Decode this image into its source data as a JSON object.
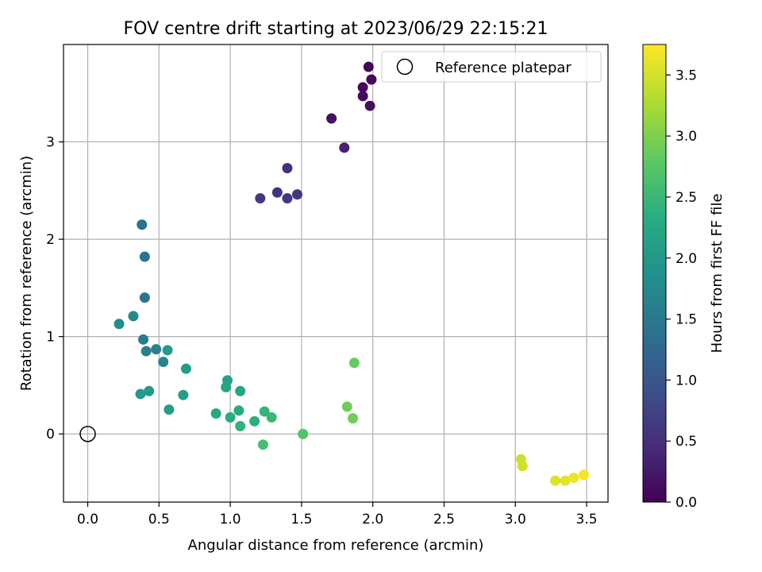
{
  "chart_data": {
    "type": "scatter",
    "title": "FOV centre drift starting at 2023/06/29 22:15:21",
    "xlabel": "Angular distance from reference (arcmin)",
    "ylabel": "Rotation from reference (arcmin)",
    "xlim": [
      -0.17,
      3.65
    ],
    "ylim": [
      -0.7,
      4.0
    ],
    "x_ticks": [
      "0.0",
      "0.5",
      "1.0",
      "1.5",
      "2.0",
      "2.5",
      "3.0",
      "3.5"
    ],
    "x_tick_values": [
      0.0,
      0.5,
      1.0,
      1.5,
      2.0,
      2.5,
      3.0,
      3.5
    ],
    "y_ticks": [
      "0",
      "1",
      "2",
      "3"
    ],
    "y_tick_values": [
      0,
      1,
      2,
      3
    ],
    "grid": true,
    "legend_position": "top-right",
    "legend": {
      "label": "Reference platepar"
    },
    "reference_point": {
      "x": 0.0,
      "y": 0.0
    },
    "colorbar": {
      "label": "Hours from first FF file",
      "range": [
        0.0,
        3.75
      ],
      "ticks": [
        "0.0",
        "0.5",
        "1.0",
        "1.5",
        "2.0",
        "2.5",
        "3.0",
        "3.5"
      ],
      "tick_values": [
        0.0,
        0.5,
        1.0,
        1.5,
        2.0,
        2.5,
        3.0,
        3.5
      ],
      "colormap": "viridis"
    },
    "points": [
      {
        "x": 1.97,
        "y": 3.77,
        "c": 0.05
      },
      {
        "x": 1.93,
        "y": 3.56,
        "c": 0.08
      },
      {
        "x": 1.99,
        "y": 3.64,
        "c": 0.1
      },
      {
        "x": 1.93,
        "y": 3.47,
        "c": 0.12
      },
      {
        "x": 1.98,
        "y": 3.37,
        "c": 0.15
      },
      {
        "x": 1.71,
        "y": 3.24,
        "c": 0.18
      },
      {
        "x": 1.8,
        "y": 2.94,
        "c": 0.35
      },
      {
        "x": 1.4,
        "y": 2.73,
        "c": 0.5
      },
      {
        "x": 1.33,
        "y": 2.48,
        "c": 0.55
      },
      {
        "x": 1.47,
        "y": 2.46,
        "c": 0.58
      },
      {
        "x": 1.4,
        "y": 2.42,
        "c": 0.6
      },
      {
        "x": 1.21,
        "y": 2.42,
        "c": 0.62
      },
      {
        "x": 0.38,
        "y": 2.15,
        "c": 1.35
      },
      {
        "x": 0.4,
        "y": 1.82,
        "c": 1.4
      },
      {
        "x": 0.4,
        "y": 1.4,
        "c": 1.45
      },
      {
        "x": 0.32,
        "y": 1.21,
        "c": 1.75
      },
      {
        "x": 0.22,
        "y": 1.13,
        "c": 1.8
      },
      {
        "x": 0.39,
        "y": 0.97,
        "c": 1.55
      },
      {
        "x": 0.41,
        "y": 0.85,
        "c": 1.6
      },
      {
        "x": 0.48,
        "y": 0.87,
        "c": 1.65
      },
      {
        "x": 0.56,
        "y": 0.86,
        "c": 2.05
      },
      {
        "x": 0.53,
        "y": 0.74,
        "c": 1.7
      },
      {
        "x": 0.69,
        "y": 0.67,
        "c": 2.05
      },
      {
        "x": 0.37,
        "y": 0.41,
        "c": 2.0
      },
      {
        "x": 0.43,
        "y": 0.44,
        "c": 2.02
      },
      {
        "x": 0.67,
        "y": 0.4,
        "c": 2.1
      },
      {
        "x": 0.57,
        "y": 0.25,
        "c": 2.1
      },
      {
        "x": 0.98,
        "y": 0.55,
        "c": 2.15
      },
      {
        "x": 0.97,
        "y": 0.48,
        "c": 2.18
      },
      {
        "x": 1.07,
        "y": 0.44,
        "c": 2.2
      },
      {
        "x": 0.9,
        "y": 0.21,
        "c": 2.25
      },
      {
        "x": 1.06,
        "y": 0.24,
        "c": 2.28
      },
      {
        "x": 1.0,
        "y": 0.17,
        "c": 2.3
      },
      {
        "x": 1.07,
        "y": 0.08,
        "c": 2.42
      },
      {
        "x": 1.17,
        "y": 0.13,
        "c": 2.38
      },
      {
        "x": 1.24,
        "y": 0.23,
        "c": 2.45
      },
      {
        "x": 1.29,
        "y": 0.17,
        "c": 2.5
      },
      {
        "x": 1.23,
        "y": -0.11,
        "c": 2.6
      },
      {
        "x": 1.51,
        "y": 0.0,
        "c": 2.7
      },
      {
        "x": 1.87,
        "y": 0.73,
        "c": 2.85
      },
      {
        "x": 1.82,
        "y": 0.28,
        "c": 2.9
      },
      {
        "x": 1.86,
        "y": 0.16,
        "c": 2.92
      },
      {
        "x": 3.04,
        "y": -0.26,
        "c": 3.45
      },
      {
        "x": 3.05,
        "y": -0.33,
        "c": 3.48
      },
      {
        "x": 3.28,
        "y": -0.48,
        "c": 3.55
      },
      {
        "x": 3.35,
        "y": -0.48,
        "c": 3.6
      },
      {
        "x": 3.41,
        "y": -0.45,
        "c": 3.65
      },
      {
        "x": 3.48,
        "y": -0.42,
        "c": 3.7
      }
    ]
  }
}
